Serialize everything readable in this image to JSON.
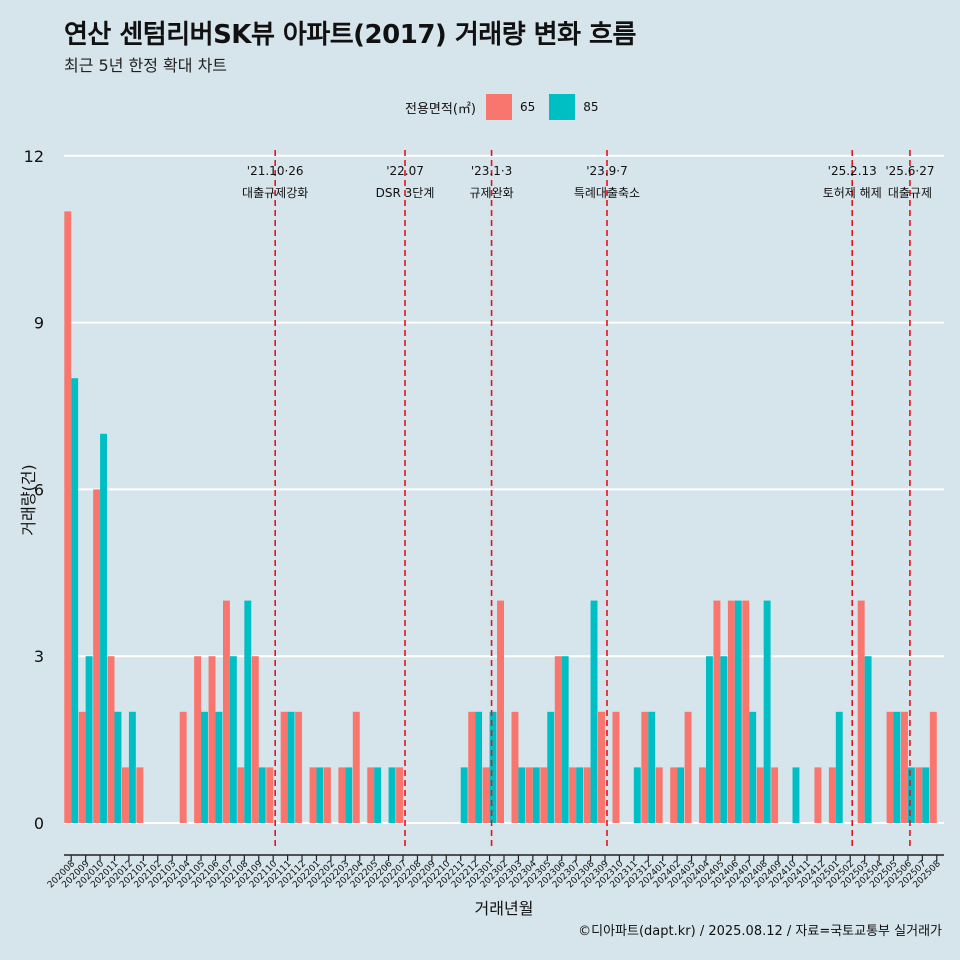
{
  "header": {
    "title": "연산 센텀리버SK뷰 아파트(2017) 거래량 변화 흐름",
    "subtitle": "최근 5년 한정 확대 차트"
  },
  "caption": "©디아파트(dapt.kr) / 2025.08.12 / 자료=국토교통부 실거래가",
  "colors": {
    "s65": "#f8766d",
    "s85": "#00bfc4",
    "vline": "#e8121b",
    "panel": "#d6e4eb",
    "grid": "#ffffff"
  },
  "chart_data": {
    "type": "bar",
    "xlabel": "거래년월",
    "ylabel": "거래량(건)",
    "ylim": [
      -0.55,
      12.5
    ],
    "yticks": [
      0,
      3,
      6,
      9,
      12
    ],
    "grid": true,
    "legend": {
      "title": "전용면적(㎡)",
      "placement": "top-center"
    },
    "categories": [
      "202008",
      "202009",
      "202010",
      "202011",
      "202012",
      "202101",
      "202102",
      "202103",
      "202104",
      "202105",
      "202106",
      "202107",
      "202108",
      "202109",
      "202110",
      "202111",
      "202112",
      "202201",
      "202202",
      "202203",
      "202204",
      "202205",
      "202206",
      "202207",
      "202208",
      "202209",
      "202210",
      "202211",
      "202212",
      "202301",
      "202302",
      "202303",
      "202304",
      "202305",
      "202306",
      "202307",
      "202308",
      "202309",
      "202310",
      "202311",
      "202312",
      "202401",
      "202402",
      "202403",
      "202404",
      "202405",
      "202406",
      "202407",
      "202408",
      "202409",
      "202410",
      "202411",
      "202412",
      "202501",
      "202502",
      "202503",
      "202504",
      "202505",
      "202506",
      "202507",
      "202508"
    ],
    "series": [
      {
        "name": "65",
        "values": [
          11,
          2,
          6,
          3,
          1,
          1,
          0,
          0,
          2,
          3,
          3,
          4,
          1,
          3,
          1,
          2,
          2,
          1,
          1,
          1,
          2,
          1,
          0,
          1,
          0,
          0,
          0,
          0,
          2,
          1,
          4,
          2,
          1,
          1,
          3,
          1,
          1,
          2,
          2,
          0,
          2,
          1,
          1,
          2,
          1,
          4,
          4,
          4,
          1,
          1,
          0,
          0,
          1,
          1,
          0,
          4,
          0,
          2,
          2,
          1,
          2
        ]
      },
      {
        "name": "85",
        "values": [
          8,
          3,
          7,
          2,
          2,
          0,
          0,
          0,
          0,
          2,
          2,
          3,
          4,
          1,
          0,
          2,
          0,
          1,
          0,
          1,
          0,
          1,
          1,
          0,
          0,
          0,
          0,
          1,
          2,
          2,
          0,
          1,
          1,
          2,
          3,
          1,
          4,
          0,
          0,
          1,
          2,
          0,
          1,
          0,
          3,
          3,
          4,
          2,
          4,
          0,
          1,
          0,
          0,
          2,
          0,
          3,
          0,
          2,
          1,
          1,
          0
        ]
      }
    ],
    "events": [
      {
        "x": "202110",
        "date": "'21.10·26",
        "label": "대출규제강화"
      },
      {
        "x": "202207",
        "date": "'22.07",
        "label": "DSR 3단계"
      },
      {
        "x": "202301",
        "date": "'23.1·3",
        "label": "규제완화"
      },
      {
        "x": "202309",
        "date": "'23.9·7",
        "label": "특례대출축소"
      },
      {
        "x": "202502",
        "date": "'25.2.13",
        "label": "토허제 해제"
      },
      {
        "x": "202506",
        "date": "'25.6·27",
        "label": "대출규제"
      }
    ]
  }
}
